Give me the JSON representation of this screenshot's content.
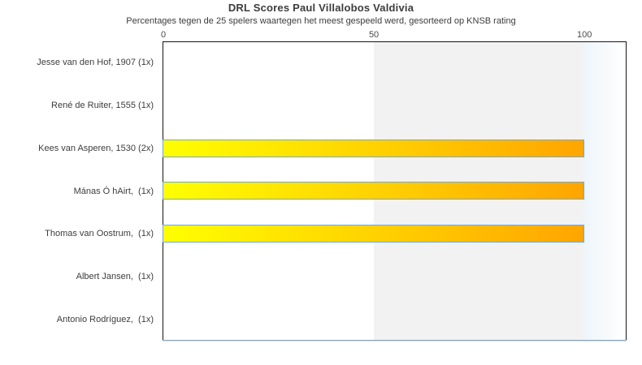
{
  "title": "DRL Scores Paul Villalobos Valdivia",
  "subtitle": "Percentages tegen de 25 spelers waartegen het meest gespeeld werd, gesorteerd op KNSB rating",
  "chart_data": {
    "type": "bar",
    "orientation": "horizontal",
    "title": "DRL Scores Paul Villalobos Valdivia",
    "subtitle": "Percentages tegen de 25 spelers waartegen het meest gespeeld werd, gesorteerd op KNSB rating",
    "categories": [
      "Jesse van den Hof, 1907 (1x)",
      "René de Ruiter, 1555 (1x)",
      "Kees van Asperen, 1530 (2x)",
      "Mánas Ó hAirt,  (1x)",
      "Thomas van Oostrum,  (1x)",
      "Albert Jansen,  (1x)",
      "Antonio Rodríguez,  (1x)"
    ],
    "values": [
      0,
      0,
      100,
      100,
      100,
      0,
      0
    ],
    "xticks": [
      0,
      50,
      100
    ],
    "xlim": [
      0,
      110
    ],
    "xlabel": "",
    "ylabel": "",
    "grid": "shaded band from 50 to 100, light blue band beyond 100",
    "legend": null,
    "colors": {
      "bar_gradient_start": "#ffff00",
      "bar_gradient_end": "#ffa500",
      "bar_border": "#6fa8dc",
      "band_50_100": "#f2f2f3",
      "band_beyond_100_start": "#eef5fa",
      "plot_border": "#141414",
      "axis_shadow": "#b9d3e8",
      "text": "#3c3c3c"
    }
  }
}
